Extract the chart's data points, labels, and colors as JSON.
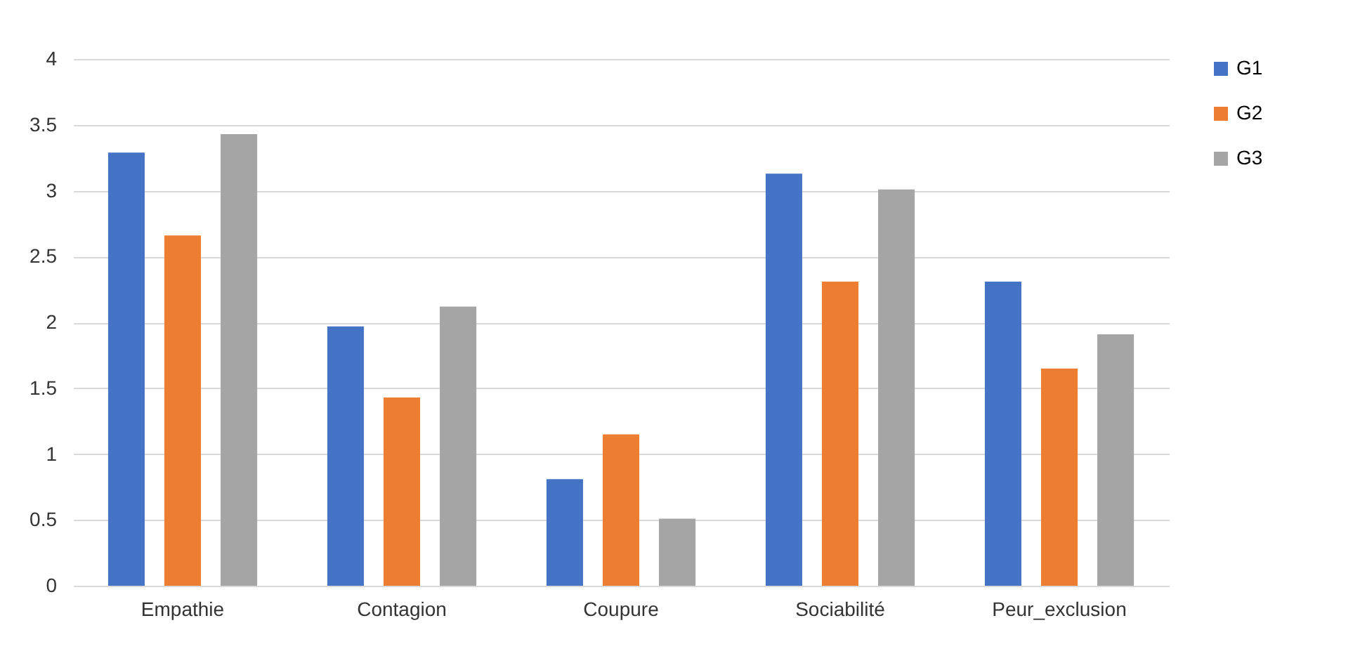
{
  "chart_data": {
    "type": "bar",
    "categories": [
      "Empathie",
      "Contagion",
      "Coupure",
      "Sociabilité",
      "Peur_exclusion"
    ],
    "series": [
      {
        "name": "G1",
        "color": "#4472c4",
        "values": [
          3.29,
          1.97,
          0.81,
          3.13,
          2.31
        ]
      },
      {
        "name": "G2",
        "color": "#ed7d31",
        "values": [
          2.66,
          1.43,
          1.15,
          2.31,
          1.65
        ]
      },
      {
        "name": "G3",
        "color": "#a5a5a5",
        "values": [
          3.43,
          2.12,
          0.51,
          3.01,
          1.91
        ]
      }
    ],
    "ylim": [
      0,
      4
    ],
    "yticks": [
      0,
      0.5,
      1,
      1.5,
      2,
      2.5,
      3,
      3.5,
      4
    ],
    "grid": "y",
    "legend": "right"
  }
}
